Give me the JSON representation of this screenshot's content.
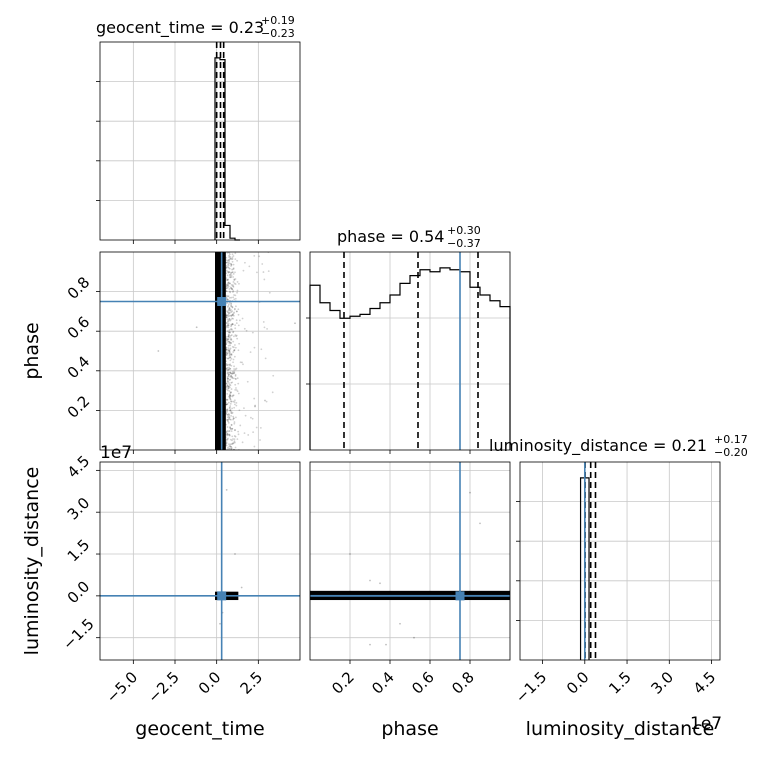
{
  "chart_data": {
    "type": "corner",
    "parameters": [
      "geocent_time",
      "phase",
      "luminosity_distance"
    ],
    "axis_labels": {
      "x": [
        "geocent_time",
        "phase",
        "luminosity_distance"
      ],
      "y": [
        "phase",
        "luminosity_distance"
      ]
    },
    "titles": [
      {
        "param": "geocent_time",
        "main": "geocent_time = 0.23",
        "plus": "+0.19",
        "minus": "−0.23"
      },
      {
        "param": "phase",
        "main": "phase = 0.54",
        "plus": "+0.30",
        "minus": "−0.37"
      },
      {
        "param": "luminosity_distance",
        "main": "luminosity_distance = 0.21",
        "plus": "+0.17",
        "minus": "−0.20"
      }
    ],
    "offset_text": "1e7",
    "injection": {
      "geocent_time": 0.3,
      "phase": 0.75,
      "luminosity_distance": 0.0
    },
    "ranges": {
      "geocent_time": [
        -7.0,
        5.0
      ],
      "phase": [
        0.0,
        1.0
      ],
      "luminosity_distance": [
        -2.3,
        4.8
      ]
    },
    "ticks": {
      "geocent_time": {
        "values": [
          -5.0,
          -2.5,
          0.0,
          2.5
        ],
        "labels": [
          "−5.0",
          "−2.5",
          "0.0",
          "2.5"
        ]
      },
      "phase_x": {
        "values": [
          0.2,
          0.4,
          0.6,
          0.8
        ],
        "labels": [
          "0.2",
          "0.4",
          "0.6",
          "0.8"
        ]
      },
      "phase_y": {
        "values": [
          0.2,
          0.4,
          0.6,
          0.8
        ],
        "labels": [
          "0.2",
          "0.4",
          "0.6",
          "0.8"
        ]
      },
      "luminosity_distance": {
        "values": [
          -1.5,
          0.0,
          1.5,
          3.0,
          4.5
        ],
        "labels": [
          "−1.5",
          "0.0",
          "1.5",
          "3.0",
          "4.5"
        ]
      }
    },
    "histograms": {
      "geocent_time": {
        "bin_edges": [
          -0.1,
          0.2,
          0.5,
          0.8,
          1.1,
          1.4
        ],
        "values": [
          1.0,
          0.99,
          0.08,
          0.01,
          0.0
        ]
      },
      "phase": {
        "bin_edges": [
          0.0,
          0.05,
          0.1,
          0.15,
          0.2,
          0.25,
          0.3,
          0.35,
          0.4,
          0.45,
          0.5,
          0.55,
          0.6,
          0.65,
          0.7,
          0.75,
          0.8,
          0.85,
          0.9,
          0.95,
          1.0
        ],
        "values": [
          0.85,
          0.76,
          0.72,
          0.68,
          0.69,
          0.7,
          0.73,
          0.76,
          0.8,
          0.86,
          0.9,
          0.93,
          0.92,
          0.94,
          0.93,
          0.92,
          0.84,
          0.8,
          0.77,
          0.74
        ]
      },
      "luminosity_distance": {
        "bin_edges": [
          -0.15,
          0.0,
          0.15
        ],
        "values": [
          1.0,
          1.0
        ]
      }
    },
    "quantile_lines": {
      "geocent_time": [
        0.0,
        0.23,
        0.42
      ],
      "phase": [
        0.17,
        0.54,
        0.84
      ],
      "luminosity_distance": [
        0.01,
        0.21,
        0.38
      ]
    },
    "grid": true,
    "colors": {
      "truth": "#4682b4",
      "hist": "#000000",
      "grid": "#c8c8c8",
      "scatter": "#000000"
    }
  }
}
